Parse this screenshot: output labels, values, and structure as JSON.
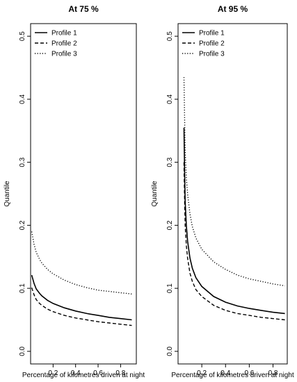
{
  "chart_data": [
    {
      "type": "line",
      "title": "At 75 %",
      "xlabel": "Percentage of kilometres driven at night",
      "ylabel": "Quantile",
      "xlim": [
        0.0,
        0.94
      ],
      "ylim": [
        -0.02,
        0.52
      ],
      "xticks": [
        0.2,
        0.4,
        0.6,
        0.8
      ],
      "xtick_labels": [
        "0.2",
        "0.4",
        "0.6",
        "0.8"
      ],
      "yticks": [
        0.0,
        0.1,
        0.2,
        0.3,
        0.4,
        0.5
      ],
      "ytick_labels": [
        "0.0",
        "0.1",
        "0.2",
        "0.3",
        "0.4",
        "0.5"
      ],
      "grid": false,
      "legend_position": "top-left",
      "series": [
        {
          "name": "Profile 1",
          "style": "solid",
          "color": "#000000",
          "x": [
            0.01,
            0.03,
            0.05,
            0.08,
            0.1,
            0.15,
            0.2,
            0.3,
            0.4,
            0.5,
            0.6,
            0.7,
            0.8,
            0.9
          ],
          "y": [
            0.121,
            0.108,
            0.099,
            0.092,
            0.088,
            0.081,
            0.076,
            0.069,
            0.064,
            0.06,
            0.057,
            0.054,
            0.052,
            0.05
          ]
        },
        {
          "name": "Profile 2",
          "style": "dashed",
          "color": "#000000",
          "x": [
            0.01,
            0.03,
            0.05,
            0.08,
            0.1,
            0.15,
            0.2,
            0.3,
            0.4,
            0.5,
            0.6,
            0.7,
            0.8,
            0.9
          ],
          "y": [
            0.101,
            0.09,
            0.082,
            0.076,
            0.073,
            0.067,
            0.063,
            0.057,
            0.053,
            0.05,
            0.047,
            0.045,
            0.043,
            0.041
          ]
        },
        {
          "name": "Profile 3",
          "style": "dotted",
          "color": "#000000",
          "x": [
            0.01,
            0.03,
            0.05,
            0.08,
            0.1,
            0.15,
            0.2,
            0.3,
            0.4,
            0.5,
            0.6,
            0.7,
            0.8,
            0.9
          ],
          "y": [
            0.19,
            0.17,
            0.157,
            0.146,
            0.14,
            0.13,
            0.123,
            0.113,
            0.106,
            0.101,
            0.097,
            0.095,
            0.093,
            0.091
          ]
        }
      ]
    },
    {
      "type": "line",
      "title": "At 95 %",
      "xlabel": "Percentage of kilometres driven at night",
      "ylabel": "Quantile",
      "xlim": [
        0.0,
        0.92
      ],
      "ylim": [
        -0.02,
        0.52
      ],
      "xticks": [
        0.2,
        0.4,
        0.6,
        0.8
      ],
      "xtick_labels": [
        "0.2",
        "0.4",
        "0.6",
        "0.8"
      ],
      "yticks": [
        0.0,
        0.1,
        0.2,
        0.3,
        0.4,
        0.5
      ],
      "ytick_labels": [
        "0.0",
        "0.1",
        "0.2",
        "0.3",
        "0.4",
        "0.5"
      ],
      "grid": false,
      "legend_position": "top-left",
      "series": [
        {
          "name": "Profile 1",
          "style": "solid",
          "color": "#000000",
          "x": [
            0.05,
            0.055,
            0.06,
            0.07,
            0.08,
            0.1,
            0.12,
            0.15,
            0.2,
            0.3,
            0.4,
            0.5,
            0.6,
            0.7,
            0.8,
            0.9
          ],
          "y": [
            0.355,
            0.285,
            0.238,
            0.2,
            0.175,
            0.148,
            0.132,
            0.117,
            0.103,
            0.087,
            0.078,
            0.072,
            0.068,
            0.065,
            0.062,
            0.06
          ]
        },
        {
          "name": "Profile 2",
          "style": "dashed",
          "color": "#000000",
          "x": [
            0.05,
            0.055,
            0.06,
            0.07,
            0.08,
            0.1,
            0.12,
            0.15,
            0.2,
            0.3,
            0.4,
            0.5,
            0.6,
            0.7,
            0.8,
            0.9
          ],
          "y": [
            0.3,
            0.24,
            0.2,
            0.168,
            0.148,
            0.124,
            0.111,
            0.098,
            0.087,
            0.073,
            0.065,
            0.06,
            0.057,
            0.054,
            0.052,
            0.05
          ]
        },
        {
          "name": "Profile 3",
          "style": "dotted",
          "color": "#000000",
          "x": [
            0.05,
            0.055,
            0.06,
            0.07,
            0.08,
            0.1,
            0.12,
            0.15,
            0.2,
            0.3,
            0.4,
            0.5,
            0.6,
            0.7,
            0.8,
            0.9
          ],
          "y": [
            0.435,
            0.37,
            0.32,
            0.275,
            0.25,
            0.218,
            0.198,
            0.18,
            0.162,
            0.142,
            0.13,
            0.121,
            0.115,
            0.111,
            0.107,
            0.104
          ]
        }
      ]
    }
  ]
}
